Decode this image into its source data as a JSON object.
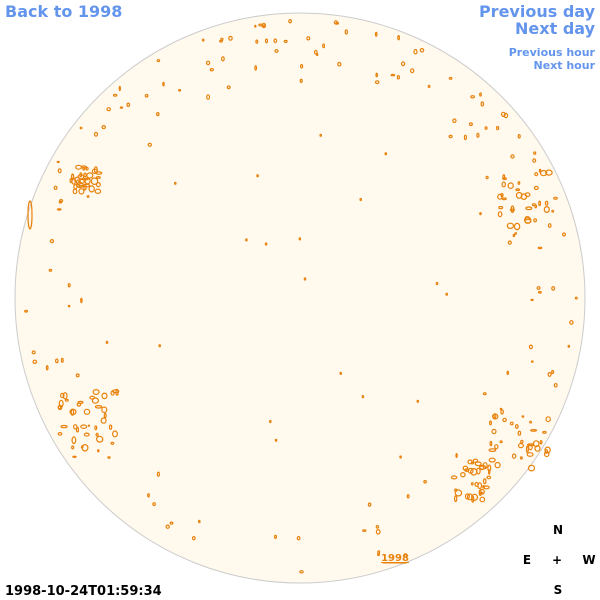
{
  "nav": {
    "back": "Back to 1998",
    "previous_day": "Previous day",
    "next_day": "Next day",
    "previous_hour": "Previous hour",
    "next_hour": "Next hour"
  },
  "disk_link": "1998",
  "timestamp": "1998-10-24T01:59:34",
  "compass": {
    "north": "N",
    "east": "E",
    "center": "+",
    "west": "W",
    "south": "S"
  }
}
